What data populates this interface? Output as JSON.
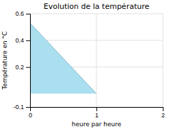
{
  "chart_data": {
    "type": "area",
    "title": "Evolution de la température",
    "xlabel": "heure par heure",
    "ylabel": "Température en °C",
    "x": [
      0,
      1,
      1,
      0
    ],
    "values": [
      0.53,
      0.0,
      0.0,
      0.0
    ],
    "color": "#aadff0",
    "xlim": [
      0,
      2
    ],
    "ylim": [
      -0.1,
      0.6
    ],
    "xticks": [
      0,
      1,
      2
    ],
    "yticks": [
      -0.1,
      0.2,
      0.4,
      0.6
    ],
    "grid": true
  }
}
